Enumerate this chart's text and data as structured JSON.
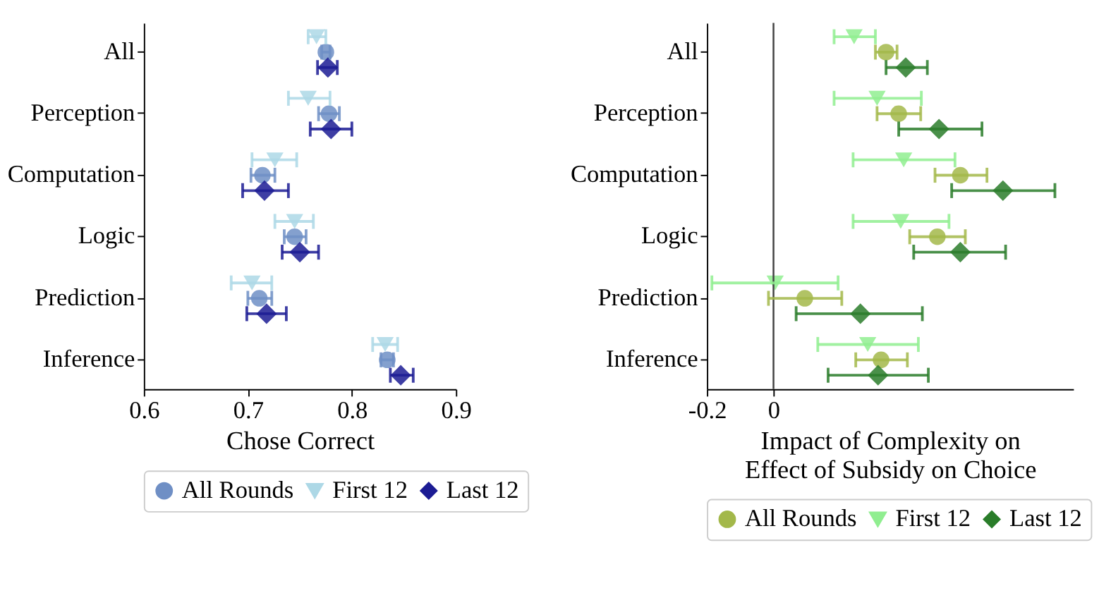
{
  "chart_data": [
    {
      "type": "scatter",
      "orientation": "horizontal",
      "xlabel": "Chose Correct",
      "categories": [
        "All",
        "Perception",
        "Computation",
        "Logic",
        "Prediction",
        "Inference"
      ],
      "xlim": [
        0.6,
        0.9
      ],
      "xticks": [
        0.6,
        0.7,
        0.8,
        0.9
      ],
      "grid": false,
      "legend": "bottom",
      "series": [
        {
          "name": "All Rounds",
          "color": "#6f8fc5",
          "marker": "circle",
          "values": [
            0.775,
            0.778,
            0.714,
            0.745,
            0.711,
            0.834
          ],
          "errors": [
            [
              0.771,
              0.779
            ],
            [
              0.768,
              0.788
            ],
            [
              0.703,
              0.726
            ],
            [
              0.735,
              0.756
            ],
            [
              0.7,
              0.723
            ],
            [
              0.828,
              0.84
            ]
          ]
        },
        {
          "name": "First 12",
          "color": "#add8e6",
          "marker": "triangle",
          "values": [
            0.766,
            0.758,
            0.726,
            0.745,
            0.704,
            0.832
          ],
          "errors": [
            [
              0.758,
              0.775
            ],
            [
              0.739,
              0.779
            ],
            [
              0.704,
              0.747
            ],
            [
              0.726,
              0.763
            ],
            [
              0.684,
              0.723
            ],
            [
              0.82,
              0.844
            ]
          ]
        },
        {
          "name": "Last 12",
          "color": "#1c1c94",
          "marker": "diamond",
          "values": [
            0.777,
            0.78,
            0.716,
            0.75,
            0.718,
            0.847
          ],
          "errors": [
            [
              0.767,
              0.786
            ],
            [
              0.76,
              0.8
            ],
            [
              0.695,
              0.739
            ],
            [
              0.733,
              0.768
            ],
            [
              0.699,
              0.737
            ],
            [
              0.837,
              0.859
            ]
          ]
        }
      ]
    },
    {
      "type": "scatter",
      "orientation": "horizontal",
      "xlabel": "Impact of Complexity on\nEffect of Subsidy on Choice",
      "categories": [
        "All",
        "Perception",
        "Computation",
        "Logic",
        "Prediction",
        "Inference"
      ],
      "xlim": [
        -0.2,
        0.9
      ],
      "xticks": [
        -0.2,
        0
      ],
      "grid": false,
      "legend": "bottom",
      "ref_lines": [
        {
          "axis": "x",
          "value": 0,
          "color": "#444444"
        }
      ],
      "series": [
        {
          "name": "All Rounds",
          "color": "#a3b84a",
          "marker": "circle",
          "values": [
            0.338,
            0.376,
            0.561,
            0.492,
            0.094,
            0.323
          ],
          "errors": [
            [
              0.306,
              0.371
            ],
            [
              0.311,
              0.442
            ],
            [
              0.485,
              0.641
            ],
            [
              0.409,
              0.576
            ],
            [
              -0.015,
              0.205
            ],
            [
              0.247,
              0.402
            ]
          ]
        },
        {
          "name": "First 12",
          "color": "#90ee90",
          "marker": "triangle",
          "values": [
            0.242,
            0.311,
            0.391,
            0.382,
            0.005,
            0.283
          ],
          "errors": [
            [
              0.182,
              0.306
            ],
            [
              0.182,
              0.444
            ],
            [
              0.239,
              0.545
            ],
            [
              0.239,
              0.527
            ],
            [
              -0.185,
              0.194
            ],
            [
              0.133,
              0.435
            ]
          ]
        },
        {
          "name": "Last 12",
          "color": "#2a7d2a",
          "marker": "diamond",
          "values": [
            0.397,
            0.497,
            0.689,
            0.561,
            0.261,
            0.314
          ],
          "errors": [
            [
              0.338,
              0.462
            ],
            [
              0.376,
              0.626
            ],
            [
              0.535,
              0.845
            ],
            [
              0.421,
              0.697
            ],
            [
              0.068,
              0.447
            ],
            [
              0.164,
              0.465
            ]
          ]
        }
      ]
    }
  ]
}
